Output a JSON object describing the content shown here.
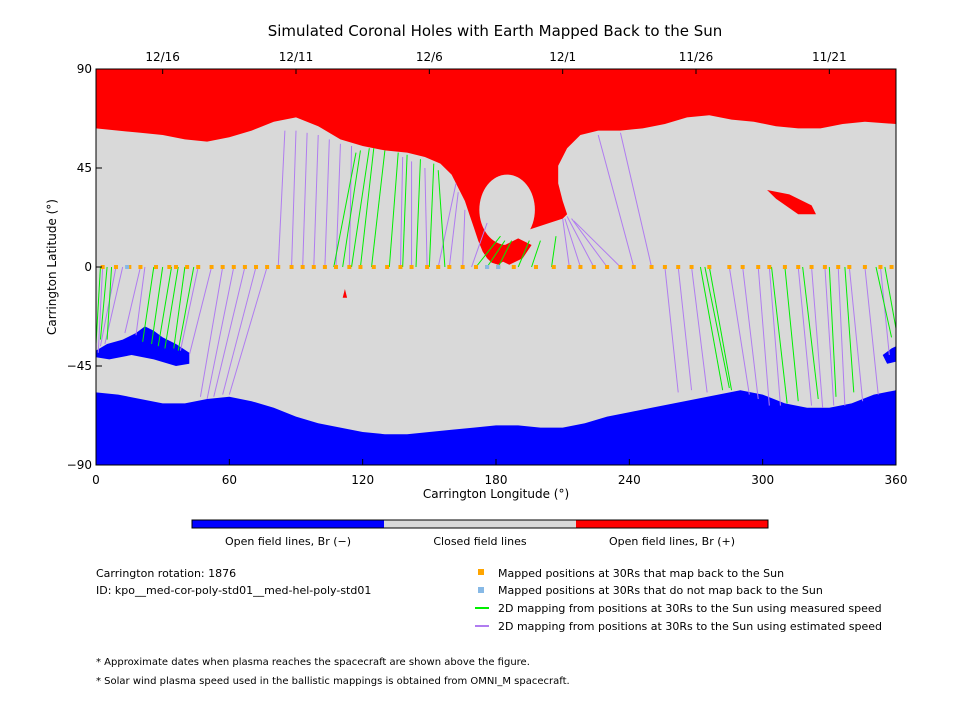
{
  "chart_data": {
    "type": "map",
    "title": "Simulated Coronal Holes with Earth Mapped Back to the Sun",
    "xlabel": "Carrington Longitude (°)",
    "ylabel": "Carrington Latitude (°)",
    "xlim": [
      0,
      360
    ],
    "ylim": [
      -90,
      90
    ],
    "x_ticks": [
      0,
      60,
      120,
      180,
      240,
      300,
      360
    ],
    "y_ticks": [
      90,
      45,
      0,
      -45,
      -90
    ],
    "top_axis_dates": [
      {
        "label": "12/16",
        "lon": 30
      },
      {
        "label": "12/11",
        "lon": 90
      },
      {
        "label": "12/6",
        "lon": 150
      },
      {
        "label": "12/1",
        "lon": 210
      },
      {
        "label": "11/26",
        "lon": 270
      },
      {
        "label": "11/21",
        "lon": 330
      }
    ],
    "colors": {
      "open_negative": "#0000ff",
      "closed": "#d9d9d9",
      "open_positive": "#ff0000",
      "mapped_yes": "#ffa500",
      "mapped_no": "#87b9e6",
      "line_measured": "#00ee00",
      "line_estimated": "#b07cf0"
    },
    "colorbar": {
      "labels": [
        "Open field lines, Br (−)",
        "Closed field lines",
        "Open field lines, Br (+)"
      ]
    },
    "legend": [
      {
        "marker": "orange-square",
        "label": "Mapped positions at 30Rs that map back to the Sun"
      },
      {
        "marker": "blue-square",
        "label": "Mapped positions at 30Rs that do not map back to the Sun"
      },
      {
        "marker": "green-line",
        "label": "2D mapping from positions at 30Rs to the Sun using measured speed"
      },
      {
        "marker": "purple-line",
        "label": "2D mapping from positions at 30Rs to the Sun using estimated speed"
      }
    ],
    "north_polar_hole_boundary": [
      [
        0,
        63
      ],
      [
        10,
        62
      ],
      [
        20,
        61
      ],
      [
        30,
        60
      ],
      [
        40,
        58
      ],
      [
        50,
        57
      ],
      [
        60,
        59
      ],
      [
        70,
        62
      ],
      [
        80,
        66
      ],
      [
        90,
        68
      ],
      [
        100,
        64
      ],
      [
        110,
        58
      ],
      [
        120,
        55
      ],
      [
        130,
        53
      ],
      [
        140,
        52
      ],
      [
        148,
        50
      ],
      [
        155,
        47
      ],
      [
        160,
        42
      ],
      [
        163,
        36
      ],
      [
        166,
        30
      ],
      [
        168,
        24
      ],
      [
        170,
        18
      ],
      [
        172,
        12
      ],
      [
        174,
        7
      ],
      [
        176,
        4
      ],
      [
        178,
        2
      ],
      [
        181,
        1
      ],
      [
        184,
        3
      ],
      [
        186,
        7
      ],
      [
        188,
        12
      ],
      [
        192,
        16
      ],
      [
        198,
        18
      ],
      [
        204,
        20
      ],
      [
        210,
        22
      ],
      [
        212,
        24
      ],
      [
        210,
        30
      ],
      [
        208,
        38
      ],
      [
        208,
        46
      ],
      [
        212,
        54
      ],
      [
        218,
        60
      ],
      [
        226,
        62
      ],
      [
        236,
        62
      ],
      [
        246,
        63
      ],
      [
        256,
        65
      ],
      [
        266,
        68
      ],
      [
        276,
        69
      ],
      [
        286,
        67
      ],
      [
        296,
        66
      ],
      [
        306,
        64
      ],
      [
        316,
        63
      ],
      [
        326,
        63
      ],
      [
        336,
        65
      ],
      [
        346,
        66
      ],
      [
        360,
        65
      ]
    ],
    "north_hole_island": {
      "lon": 185,
      "lat": 26,
      "rx": 12.5,
      "ry": 16
    },
    "red_patches": [
      [
        [
          302,
          35
        ],
        [
          312,
          33
        ],
        [
          322,
          28
        ],
        [
          324,
          24
        ],
        [
          316,
          24
        ],
        [
          306,
          31
        ]
      ],
      [
        [
          182,
          3
        ],
        [
          186,
          1
        ],
        [
          192,
          4
        ],
        [
          196,
          10
        ],
        [
          190,
          13
        ],
        [
          184,
          10
        ]
      ],
      [
        [
          112,
          -10
        ],
        [
          113,
          -14
        ],
        [
          111,
          -14
        ]
      ]
    ],
    "south_polar_hole_boundary": [
      [
        0,
        -57
      ],
      [
        10,
        -58
      ],
      [
        20,
        -60
      ],
      [
        30,
        -62
      ],
      [
        40,
        -62
      ],
      [
        50,
        -60
      ],
      [
        60,
        -59
      ],
      [
        70,
        -61
      ],
      [
        80,
        -64
      ],
      [
        90,
        -68
      ],
      [
        100,
        -71
      ],
      [
        110,
        -73
      ],
      [
        120,
        -75
      ],
      [
        130,
        -76
      ],
      [
        140,
        -76
      ],
      [
        150,
        -75
      ],
      [
        160,
        -74
      ],
      [
        170,
        -73
      ],
      [
        180,
        -72
      ],
      [
        190,
        -72
      ],
      [
        200,
        -73
      ],
      [
        210,
        -73
      ],
      [
        220,
        -71
      ],
      [
        230,
        -68
      ],
      [
        240,
        -66
      ],
      [
        250,
        -64
      ],
      [
        260,
        -62
      ],
      [
        270,
        -60
      ],
      [
        280,
        -58
      ],
      [
        290,
        -56
      ],
      [
        300,
        -58
      ],
      [
        310,
        -62
      ],
      [
        320,
        -64
      ],
      [
        330,
        -64
      ],
      [
        340,
        -62
      ],
      [
        350,
        -58
      ],
      [
        360,
        -56
      ]
    ],
    "south_lobes": [
      [
        [
          0,
          -38
        ],
        [
          5,
          -35
        ],
        [
          12,
          -33
        ],
        [
          18,
          -30
        ],
        [
          22,
          -27
        ],
        [
          26,
          -29
        ],
        [
          30,
          -32
        ],
        [
          36,
          -35
        ],
        [
          42,
          -39
        ],
        [
          42,
          -44
        ],
        [
          36,
          -45
        ],
        [
          26,
          -42
        ],
        [
          16,
          -40
        ],
        [
          6,
          -42
        ],
        [
          0,
          -41
        ]
      ],
      [
        [
          354,
          -40
        ],
        [
          358,
          -37
        ],
        [
          360,
          -36
        ],
        [
          360,
          -43
        ],
        [
          356,
          -44
        ]
      ]
    ],
    "mapped_points_lon": [
      3,
      9,
      15,
      20,
      27,
      33,
      36,
      41,
      46,
      52,
      57,
      62,
      67,
      72,
      77,
      82,
      88,
      93,
      98,
      103,
      108,
      114,
      119,
      125,
      131,
      137,
      142,
      149,
      154,
      159,
      165,
      171,
      176,
      181,
      188,
      198,
      206,
      213,
      218,
      224,
      230,
      236,
      242,
      250,
      256,
      262,
      268,
      276,
      285,
      291,
      298,
      303,
      310,
      316,
      322,
      328,
      334,
      339,
      346,
      353,
      358
    ],
    "mapped_points_no_lon": [
      14,
      176,
      181
    ],
    "connections_measured": [
      {
        "lon": 2,
        "foot": [
          0,
          -35
        ]
      },
      {
        "lon": 5,
        "foot": [
          2,
          -33
        ]
      },
      {
        "lon": 7,
        "foot": [
          5,
          -33
        ]
      },
      {
        "lon": 26,
        "foot": [
          21,
          -34
        ]
      },
      {
        "lon": 30,
        "foot": [
          25,
          -35
        ]
      },
      {
        "lon": 34,
        "foot": [
          28,
          -36
        ]
      },
      {
        "lon": 37,
        "foot": [
          31,
          -37
        ]
      },
      {
        "lon": 40,
        "foot": [
          35,
          -37
        ]
      },
      {
        "lon": 44,
        "foot": [
          37,
          -38
        ]
      },
      {
        "lon": 107,
        "foot": [
          117,
          52
        ]
      },
      {
        "lon": 111,
        "foot": [
          119,
          53
        ]
      },
      {
        "lon": 115,
        "foot": [
          123,
          54
        ]
      },
      {
        "lon": 119,
        "foot": [
          125,
          54
        ]
      },
      {
        "lon": 124,
        "foot": [
          130,
          53
        ]
      },
      {
        "lon": 132,
        "foot": [
          136,
          52
        ]
      },
      {
        "lon": 138,
        "foot": [
          140,
          51
        ]
      },
      {
        "lon": 144,
        "foot": [
          146,
          49
        ]
      },
      {
        "lon": 150,
        "foot": [
          152,
          47
        ]
      },
      {
        "lon": 157,
        "foot": [
          154,
          44
        ]
      },
      {
        "lon": 171,
        "foot": [
          182,
          14
        ]
      },
      {
        "lon": 176,
        "foot": [
          184,
          12
        ]
      },
      {
        "lon": 181,
        "foot": [
          187,
          12
        ]
      },
      {
        "lon": 190,
        "foot": [
          195,
          12
        ]
      },
      {
        "lon": 196,
        "foot": [
          200,
          12
        ]
      },
      {
        "lon": 205,
        "foot": [
          207,
          14
        ]
      },
      {
        "lon": 272,
        "foot": [
          282,
          -56
        ]
      },
      {
        "lon": 274,
        "foot": [
          285,
          -55
        ]
      },
      {
        "lon": 276,
        "foot": [
          286,
          -56
        ]
      },
      {
        "lon": 304,
        "foot": [
          311,
          -62
        ]
      },
      {
        "lon": 310,
        "foot": [
          316,
          -61
        ]
      },
      {
        "lon": 318,
        "foot": [
          325,
          -60
        ]
      },
      {
        "lon": 330,
        "foot": [
          333,
          -59
        ]
      },
      {
        "lon": 337,
        "foot": [
          341,
          -57
        ]
      },
      {
        "lon": 351,
        "foot": [
          358,
          -32
        ]
      },
      {
        "lon": 355,
        "foot": [
          360,
          -28
        ]
      }
    ],
    "connections_estimated": [
      {
        "lon": 3,
        "foot": [
          1,
          -39
        ]
      },
      {
        "lon": 9,
        "foot": [
          2,
          -36
        ]
      },
      {
        "lon": 12,
        "foot": [
          4,
          -35
        ]
      },
      {
        "lon": 20,
        "foot": [
          13,
          -30
        ]
      },
      {
        "lon": 22,
        "foot": [
          18,
          -31
        ]
      },
      {
        "lon": 46,
        "foot": [
          38,
          -38
        ]
      },
      {
        "lon": 52,
        "foot": [
          42,
          -40
        ]
      },
      {
        "lon": 57,
        "foot": [
          47,
          -59
        ]
      },
      {
        "lon": 62,
        "foot": [
          50,
          -60
        ]
      },
      {
        "lon": 67,
        "foot": [
          53,
          -59
        ]
      },
      {
        "lon": 72,
        "foot": [
          57,
          -58
        ]
      },
      {
        "lon": 77,
        "foot": [
          60,
          -58
        ]
      },
      {
        "lon": 82,
        "foot": [
          85,
          62
        ]
      },
      {
        "lon": 88,
        "foot": [
          90,
          62
        ]
      },
      {
        "lon": 93,
        "foot": [
          95,
          61
        ]
      },
      {
        "lon": 98,
        "foot": [
          100,
          60
        ]
      },
      {
        "lon": 103,
        "foot": [
          105,
          58
        ]
      },
      {
        "lon": 108,
        "foot": [
          110,
          56
        ]
      },
      {
        "lon": 114,
        "foot": [
          115,
          55
        ]
      },
      {
        "lon": 137,
        "foot": [
          138,
          50
        ]
      },
      {
        "lon": 142,
        "foot": [
          142,
          48
        ]
      },
      {
        "lon": 149,
        "foot": [
          148,
          45
        ]
      },
      {
        "lon": 154,
        "foot": [
          162,
          38
        ]
      },
      {
        "lon": 159,
        "foot": [
          163,
          34
        ]
      },
      {
        "lon": 165,
        "foot": [
          166,
          26
        ]
      },
      {
        "lon": 169,
        "foot": [
          176,
          20
        ]
      },
      {
        "lon": 213,
        "foot": [
          210,
          22
        ]
      },
      {
        "lon": 218,
        "foot": [
          211,
          22
        ]
      },
      {
        "lon": 224,
        "foot": [
          212,
          23
        ]
      },
      {
        "lon": 230,
        "foot": [
          214,
          22
        ]
      },
      {
        "lon": 236,
        "foot": [
          215,
          21
        ]
      },
      {
        "lon": 242,
        "foot": [
          226,
          60
        ]
      },
      {
        "lon": 250,
        "foot": [
          236,
          61
        ]
      },
      {
        "lon": 256,
        "foot": [
          262,
          -57
        ]
      },
      {
        "lon": 262,
        "foot": [
          268,
          -56
        ]
      },
      {
        "lon": 268,
        "foot": [
          275,
          -57
        ]
      },
      {
        "lon": 285,
        "foot": [
          294,
          -58
        ]
      },
      {
        "lon": 291,
        "foot": [
          298,
          -60
        ]
      },
      {
        "lon": 298,
        "foot": [
          303,
          -63
        ]
      },
      {
        "lon": 303,
        "foot": [
          308,
          -63
        ]
      },
      {
        "lon": 316,
        "foot": [
          322,
          -63
        ]
      },
      {
        "lon": 322,
        "foot": [
          327,
          -64
        ]
      },
      {
        "lon": 328,
        "foot": [
          332,
          -63
        ]
      },
      {
        "lon": 334,
        "foot": [
          337,
          -63
        ]
      },
      {
        "lon": 339,
        "foot": [
          345,
          -61
        ]
      },
      {
        "lon": 346,
        "foot": [
          352,
          -58
        ]
      },
      {
        "lon": 353,
        "foot": [
          357,
          -40
        ]
      }
    ]
  },
  "info": {
    "rotation": "Carrington rotation: 1876",
    "id": "ID: kpo__med-cor-poly-std01__med-hel-poly-std01"
  },
  "notes": [
    "* Approximate dates when plasma reaches the spacecraft are shown above the figure.",
    "* Solar wind plasma speed used in the ballistic mappings is obtained from OMNI_M spacecraft."
  ]
}
